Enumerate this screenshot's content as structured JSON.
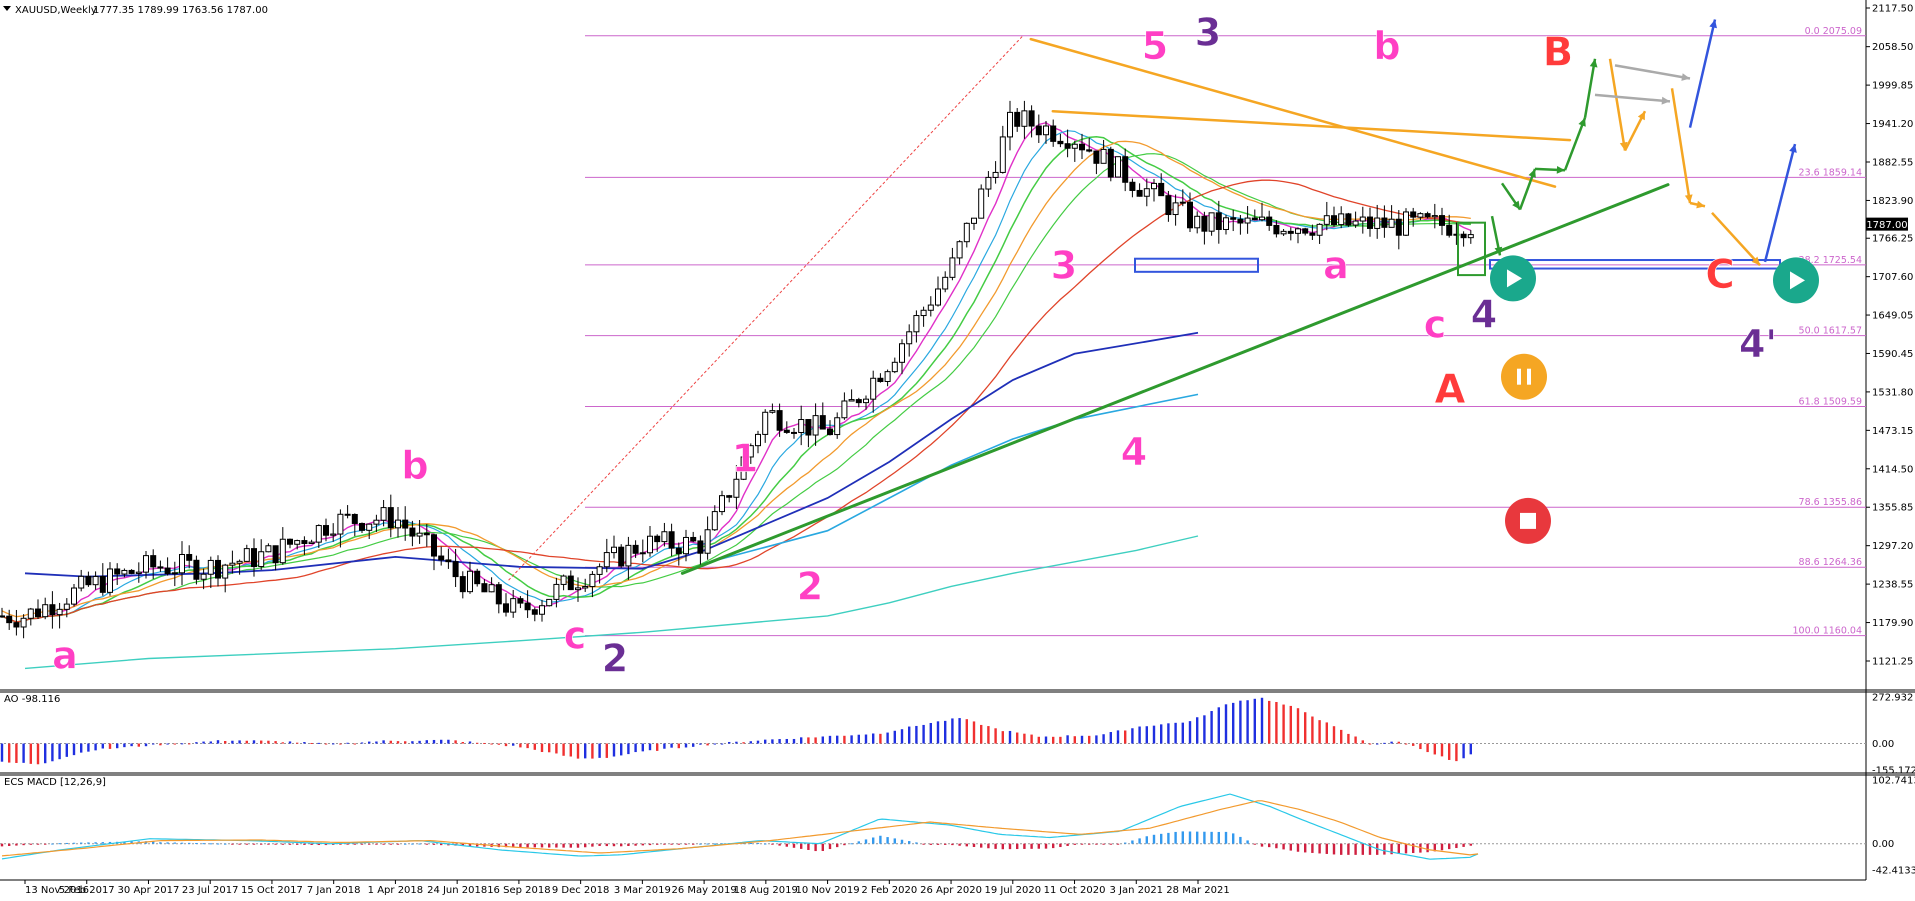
{
  "symbol_header": {
    "symbol": "XAUUSD,Weekly",
    "ohlc": "1777.35 1789.99 1763.56 1787.00"
  },
  "chart_data": [
    {
      "type": "candlestick",
      "panel": "price",
      "yaxis": {
        "range": [
          1100,
          2130
        ],
        "ticks": [
          2117.5,
          2058.5,
          1999.85,
          1941.2,
          1882.55,
          1823.9,
          1766.25,
          1707.6,
          1649.05,
          1590.45,
          1531.8,
          1473.15,
          1414.5,
          1355.85,
          1297.2,
          1238.55,
          1179.9,
          1121.25
        ],
        "tick_labels": [
          "2117.50",
          "2058.50",
          "1999.85",
          "1941.20",
          "1882.55",
          "1823.90",
          "1766.25",
          "1707.60",
          "1649.05",
          "1590.45",
          "1531.80",
          "1473.15",
          "1414.50",
          "1355.85",
          "1297.20",
          "1238.55",
          "1179.90",
          "1121.25"
        ]
      },
      "current_price": {
        "value": 1787.0,
        "label": "1787.00"
      },
      "closes_x": [
        "13 Nov 2016",
        "5 Feb 2017",
        "30 Apr 2017",
        "23 Jul 2017",
        "15 Oct 2017",
        "7 Jan 2018",
        "1 Apr 2018",
        "24 Jun 2018",
        "16 Sep 2018",
        "9 Dec 2018",
        "3 Mar 2019",
        "26 May 2019",
        "18 Aug 2019",
        "10 Nov 2019",
        "2 Feb 2020",
        "26 Apr 2020",
        "19 Jul 2020",
        "11 Oct 2020",
        "3 Jan 2021",
        "28 Mar 2021"
      ],
      "closes_y": [
        1190,
        1235,
        1265,
        1265,
        1285,
        1335,
        1340,
        1250,
        1195,
        1250,
        1300,
        1300,
        1500,
        1470,
        1580,
        1720,
        1950,
        1920,
        1850,
        1787
      ],
      "fib_levels": [
        {
          "pct": "0.0",
          "value": 2075.09,
          "label": "0.0 2075.09"
        },
        {
          "pct": "23.6",
          "value": 1859.14,
          "label": "23.6 1859.14"
        },
        {
          "pct": "38.2",
          "value": 1725.54,
          "label": "38.2 1725.54"
        },
        {
          "pct": "50.0",
          "value": 1617.57,
          "label": "50.0 1617.57"
        },
        {
          "pct": "61.8",
          "value": 1509.59,
          "label": "61.8 1509.59"
        },
        {
          "pct": "78.6",
          "value": 1355.86,
          "label": "78.6 1355.86"
        },
        {
          "pct": "88.6",
          "value": 1264.36,
          "label": "88.6 1264.36"
        },
        {
          "pct": "100.0",
          "value": 1160.04,
          "label": "100.0 1160.04"
        }
      ],
      "wave_labels": [
        {
          "text": "a",
          "color": "#ff3fc4",
          "date": "13 Nov 2016",
          "price": 1110
        },
        {
          "text": "b",
          "color": "#ff3fc4",
          "date": "7 Jan 2018",
          "price": 1400
        },
        {
          "text": "c",
          "color": "#ff3fc4",
          "date": "24 Jun 2018",
          "price": 1140
        },
        {
          "text": "2",
          "color": "#6a2e94",
          "date": "24 Jun 2018",
          "price": 1105
        },
        {
          "text": "1",
          "color": "#ff3fc4",
          "date": "9 Dec 2018",
          "price": 1410
        },
        {
          "text": "2",
          "color": "#ff3fc4",
          "date": "3 Mar 2019",
          "price": 1215
        },
        {
          "text": "3",
          "color": "#ff3fc4",
          "date": "2 Feb 2020",
          "price": 1705
        },
        {
          "text": "4",
          "color": "#ff3fc4",
          "date": "2 Feb 2020",
          "price": 1420
        },
        {
          "text": "5",
          "color": "#ff3fc4",
          "date": "19 Jul 2020",
          "price": 2040
        },
        {
          "text": "3",
          "color": "#6a2e94",
          "date": "19 Jul 2020",
          "price": 2060
        },
        {
          "text": "b",
          "color": "#ff3fc4",
          "date": "3 Jan 2021",
          "price": 2040
        },
        {
          "text": "a",
          "color": "#ff3fc4",
          "date": "11 Oct 2020",
          "price": 1705
        },
        {
          "text": "c",
          "color": "#ff3fc4",
          "date": "28 Mar 2021",
          "price": 1615
        },
        {
          "text": "4",
          "color": "#6a2e94",
          "date": "28 Mar 2021",
          "price": 1630
        },
        {
          "text": "A",
          "color": "#ff3b3b",
          "date": "28 Mar 2021",
          "price": 1515
        },
        {
          "text": "B",
          "color": "#ff3b3b",
          "date": "28 Mar 2021",
          "price": 2030
        },
        {
          "text": "C",
          "color": "#ff3b3b",
          "date": "28 Mar 2021",
          "price": 1690
        },
        {
          "text": "4'",
          "color": "#6a2e94",
          "date": "28 Mar 2021",
          "price": 1585
        }
      ],
      "colors": {
        "fib": "#cc66cc",
        "trendline": "#2e9a2e",
        "resistance": "#f5a623",
        "ma_blue": "#1f2fb8",
        "ma_lightblue": "#29a8e0",
        "ma_teal": "#3ecfc0",
        "ma_green": "#44cc44",
        "ma_orange": "#f29a2e",
        "ma_red": "#e0442a",
        "ma_magenta": "#e030c8",
        "zone": "#3355dd",
        "play": "#1aa88c",
        "pause": "#f5a623",
        "stop": "#e8383d"
      },
      "icons": [
        "play-icon",
        "play-icon",
        "pause-icon",
        "stop-icon"
      ]
    },
    {
      "type": "histogram",
      "panel": "ao",
      "title": "AO -98.116",
      "yaxis": {
        "ticks": [
          272.932,
          0.0,
          -155.172
        ],
        "tick_labels": [
          "272.932",
          "0.00",
          "-155.172"
        ]
      },
      "colors": {
        "up": "#1f2fe0",
        "down": "#f03030"
      }
    },
    {
      "type": "histogram",
      "panel": "macd",
      "title": "ECS MACD [12,26,9]",
      "yaxis": {
        "ticks": [
          102.7413,
          0.0,
          -42.4133
        ],
        "tick_labels": [
          "102.7413",
          "0.00",
          "-42.4133"
        ]
      },
      "colors": {
        "pos": "#3399ee",
        "neg": "#d02040",
        "main": "#29c8e8",
        "signal": "#f29a2e"
      }
    }
  ],
  "xaxis": {
    "labels": [
      "13 Nov 2016",
      "5 Feb 2017",
      "30 Apr 2017",
      "23 Jul 2017",
      "15 Oct 2017",
      "7 Jan 2018",
      "1 Apr 2018",
      "24 Jun 2018",
      "16 Sep 2018",
      "9 Dec 2018",
      "3 Mar 2019",
      "26 May 2019",
      "18 Aug 2019",
      "10 Nov 2019",
      "2 Feb 2020",
      "26 Apr 2020",
      "19 Jul 2020",
      "11 Oct 2020",
      "3 Jan 2021",
      "28 Mar 2021"
    ]
  }
}
